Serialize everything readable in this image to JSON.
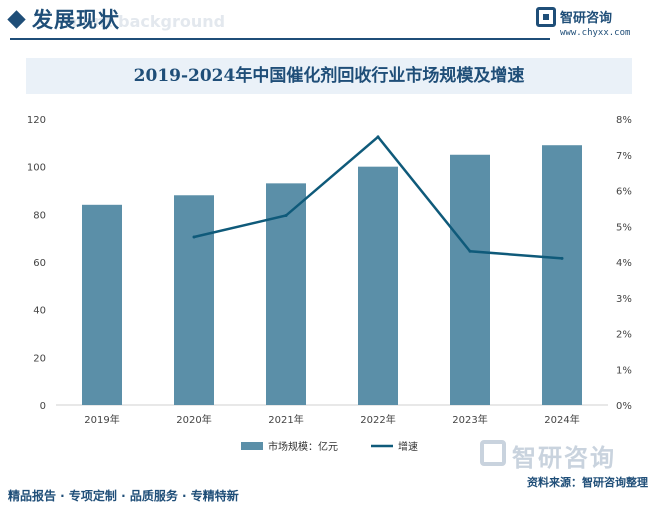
{
  "header": {
    "title": "发展现状",
    "subtitle": "ment background",
    "brand_name": "智研咨询",
    "brand_url": "www.chyxx.com"
  },
  "chart_data": {
    "type": "bar",
    "title": "2019-2024年中国催化剂回收行业市场规模及增速",
    "categories": [
      "2019年",
      "2020年",
      "2021年",
      "2022年",
      "2023年",
      "2024年"
    ],
    "series": [
      {
        "name": "市场规模：亿元",
        "kind": "bar",
        "axis": "left",
        "values": [
          84,
          88,
          93,
          100,
          105,
          109
        ],
        "color": "#5b8fa8"
      },
      {
        "name": "增速",
        "kind": "line",
        "axis": "right",
        "values": [
          null,
          4.7,
          5.3,
          7.5,
          4.3,
          4.1
        ],
        "color": "#0f5a7a"
      }
    ],
    "ylim_left": [
      0,
      120
    ],
    "yticks_left": [
      "0",
      "20",
      "40",
      "60",
      "80",
      "100",
      "120"
    ],
    "ylim_right": [
      0,
      8
    ],
    "yticks_right": [
      "0%",
      "1%",
      "2%",
      "3%",
      "4%",
      "5%",
      "6%",
      "7%",
      "8%"
    ],
    "legend_position": "bottom",
    "grid": false
  },
  "watermark": {
    "text": "智研咨询"
  },
  "footer": {
    "tagline": "精品报告 · 专项定制 · 品质服务 · 专精特新",
    "source": "资料来源：智研咨询整理"
  }
}
